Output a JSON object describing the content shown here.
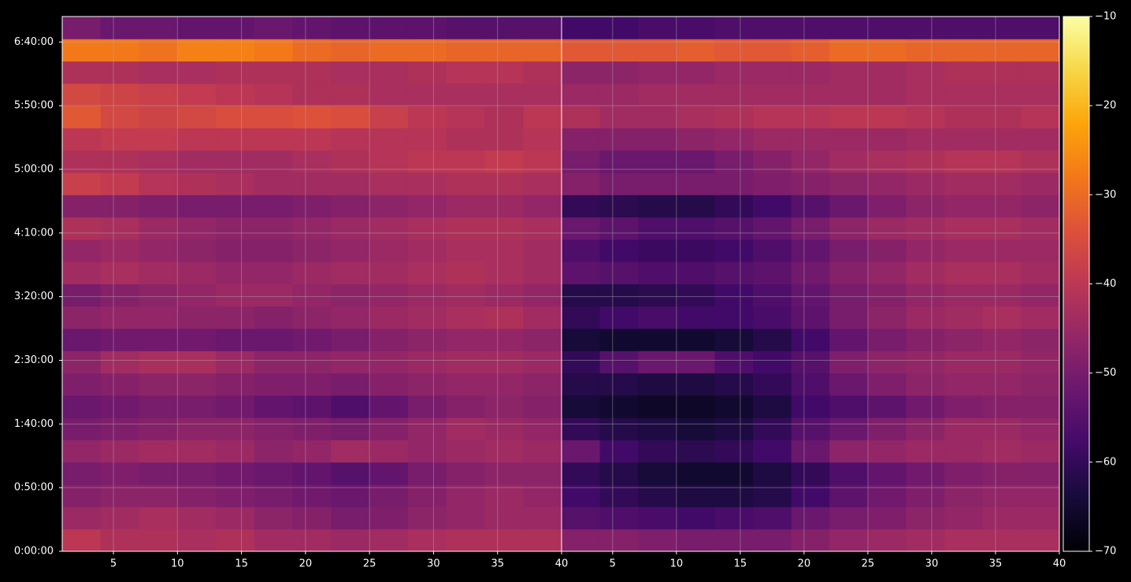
{
  "chart_data": [
    {
      "type": "heatmap",
      "colormap": "inferno",
      "grid": true,
      "x": [
        2.5,
        5.5,
        8.5,
        11.5,
        14.5,
        17.5,
        20.5,
        23.5,
        26.5,
        29.5,
        32.5,
        35.5,
        38.5
      ],
      "y": [
        525,
        1575,
        2625,
        3675,
        4725,
        5775,
        6825,
        7875,
        8925,
        9975,
        11025,
        12075,
        13125,
        14175,
        15225,
        16275,
        17325,
        18375,
        19425,
        20475,
        21525,
        22575,
        23625,
        24675
      ],
      "xlim": [
        1,
        40
      ],
      "xticks": [
        5,
        10,
        15,
        20,
        25,
        30,
        35,
        40
      ],
      "ylim": [
        0,
        25200
      ],
      "yticks": [
        {
          "value": 0,
          "label": "0:00:00"
        },
        {
          "value": 3000,
          "label": "0:50:00"
        },
        {
          "value": 6000,
          "label": "1:40:00"
        },
        {
          "value": 9000,
          "label": "2:30:00"
        },
        {
          "value": 12000,
          "label": "3:20:00"
        },
        {
          "value": 15000,
          "label": "4:10:00"
        },
        {
          "value": 18000,
          "label": "5:00:00"
        },
        {
          "value": 21000,
          "label": "5:50:00"
        },
        {
          "value": 24000,
          "label": "6:40:00"
        }
      ],
      "values": [
        [
          -40,
          -42,
          -42,
          -43,
          -42,
          -44,
          -44,
          -45,
          -44,
          -43,
          -42,
          -42,
          -42
        ],
        [
          -45,
          -44,
          -43,
          -44,
          -45,
          -47,
          -48,
          -50,
          -49,
          -47,
          -46,
          -45,
          -45
        ],
        [
          -48,
          -47,
          -47,
          -48,
          -49,
          -50,
          -51,
          -52,
          -50,
          -48,
          -46,
          -45,
          -46
        ],
        [
          -50,
          -49,
          -50,
          -50,
          -51,
          -52,
          -53,
          -55,
          -53,
          -50,
          -48,
          -47,
          -47
        ],
        [
          -46,
          -45,
          -44,
          -44,
          -45,
          -47,
          -46,
          -44,
          -45,
          -46,
          -45,
          -44,
          -45
        ],
        [
          -50,
          -49,
          -48,
          -47,
          -47,
          -48,
          -49,
          -50,
          -48,
          -46,
          -44,
          -45,
          -46
        ],
        [
          -52,
          -51,
          -50,
          -50,
          -51,
          -53,
          -54,
          -56,
          -53,
          -50,
          -48,
          -47,
          -48
        ],
        [
          -49,
          -48,
          -47,
          -47,
          -48,
          -49,
          -49,
          -50,
          -48,
          -47,
          -46,
          -46,
          -47
        ],
        [
          -47,
          -44,
          -43,
          -43,
          -45,
          -47,
          -47,
          -46,
          -46,
          -45,
          -44,
          -44,
          -45
        ],
        [
          -52,
          -51,
          -51,
          -51,
          -52,
          -52,
          -51,
          -50,
          -48,
          -47,
          -46,
          -46,
          -47
        ],
        [
          -47,
          -46,
          -46,
          -47,
          -47,
          -48,
          -47,
          -46,
          -45,
          -44,
          -43,
          -42,
          -44
        ],
        [
          -50,
          -48,
          -47,
          -46,
          -45,
          -45,
          -46,
          -47,
          -46,
          -45,
          -44,
          -45,
          -46
        ],
        [
          -44,
          -43,
          -44,
          -45,
          -46,
          -46,
          -45,
          -44,
          -44,
          -43,
          -42,
          -43,
          -44
        ],
        [
          -46,
          -45,
          -46,
          -47,
          -48,
          -48,
          -47,
          -46,
          -45,
          -44,
          -43,
          -43,
          -44
        ],
        [
          -42,
          -43,
          -45,
          -46,
          -47,
          -47,
          -46,
          -45,
          -44,
          -43,
          -42,
          -42,
          -43
        ],
        [
          -48,
          -48,
          -49,
          -50,
          -50,
          -50,
          -49,
          -48,
          -47,
          -46,
          -45,
          -45,
          -46
        ],
        [
          -38,
          -39,
          -41,
          -42,
          -43,
          -44,
          -44,
          -44,
          -43,
          -43,
          -42,
          -42,
          -43
        ],
        [
          -42,
          -42,
          -43,
          -44,
          -44,
          -44,
          -43,
          -42,
          -41,
          -40,
          -40,
          -39,
          -40
        ],
        [
          -40,
          -39,
          -39,
          -40,
          -40,
          -40,
          -40,
          -41,
          -41,
          -41,
          -42,
          -42,
          -41
        ],
        [
          -33,
          -36,
          -37,
          -36,
          -35,
          -35,
          -34,
          -35,
          -38,
          -40,
          -41,
          -42,
          -40
        ],
        [
          -36,
          -37,
          -38,
          -39,
          -40,
          -41,
          -42,
          -42,
          -43,
          -43,
          -43,
          -43,
          -43
        ],
        [
          -42,
          -42,
          -43,
          -43,
          -42,
          -42,
          -42,
          -43,
          -43,
          -42,
          -41,
          -41,
          -42
        ],
        [
          -28,
          -28,
          -29,
          -27,
          -27,
          -28,
          -30,
          -31,
          -30,
          -30,
          -31,
          -31,
          -31
        ],
        [
          -50,
          -52,
          -52,
          -53,
          -53,
          -52,
          -53,
          -54,
          -54,
          -54,
          -55,
          -55,
          -55
        ]
      ]
    },
    {
      "type": "heatmap",
      "colormap": "inferno",
      "grid": true,
      "sharey": true,
      "x": [
        2.5,
        5.5,
        8.5,
        11.5,
        14.5,
        17.5,
        20.5,
        23.5,
        26.5,
        29.5,
        32.5,
        35.5,
        38.5
      ],
      "y": [
        525,
        1575,
        2625,
        3675,
        4725,
        5775,
        6825,
        7875,
        8925,
        9975,
        11025,
        12075,
        13125,
        14175,
        15225,
        16275,
        17325,
        18375,
        19425,
        20475,
        21525,
        22575,
        23625,
        24675
      ],
      "xlim": [
        1,
        40
      ],
      "xticks": [
        5,
        10,
        15,
        20,
        25,
        30,
        35,
        40
      ],
      "ylim": [
        0,
        25200
      ],
      "values": [
        [
          -48,
          -48,
          -49,
          -50,
          -50,
          -50,
          -48,
          -46,
          -45,
          -44,
          -43,
          -43,
          -43
        ],
        [
          -55,
          -56,
          -57,
          -58,
          -57,
          -56,
          -52,
          -50,
          -49,
          -47,
          -46,
          -45,
          -45
        ],
        [
          -58,
          -60,
          -62,
          -63,
          -63,
          -62,
          -58,
          -54,
          -51,
          -49,
          -47,
          -46,
          -46
        ],
        [
          -60,
          -62,
          -64,
          -65,
          -65,
          -63,
          -60,
          -56,
          -53,
          -51,
          -49,
          -48,
          -48
        ],
        [
          -52,
          -58,
          -60,
          -61,
          -60,
          -58,
          -52,
          -47,
          -46,
          -45,
          -45,
          -44,
          -45
        ],
        [
          -60,
          -62,
          -63,
          -64,
          -63,
          -60,
          -55,
          -52,
          -49,
          -47,
          -45,
          -45,
          -46
        ],
        [
          -64,
          -65,
          -66,
          -66,
          -65,
          -63,
          -58,
          -56,
          -54,
          -51,
          -49,
          -48,
          -48
        ],
        [
          -62,
          -62,
          -63,
          -63,
          -62,
          -60,
          -56,
          -52,
          -49,
          -47,
          -46,
          -46,
          -47
        ],
        [
          -60,
          -55,
          -52,
          -52,
          -56,
          -58,
          -55,
          -49,
          -47,
          -46,
          -45,
          -45,
          -46
        ],
        [
          -64,
          -65,
          -65,
          -65,
          -64,
          -62,
          -58,
          -53,
          -50,
          -48,
          -47,
          -46,
          -47
        ],
        [
          -60,
          -58,
          -57,
          -58,
          -58,
          -57,
          -54,
          -50,
          -47,
          -45,
          -44,
          -43,
          -44
        ],
        [
          -62,
          -62,
          -61,
          -60,
          -58,
          -56,
          -53,
          -50,
          -48,
          -46,
          -45,
          -45,
          -46
        ],
        [
          -54,
          -55,
          -56,
          -56,
          -55,
          -54,
          -51,
          -48,
          -46,
          -44,
          -43,
          -43,
          -44
        ],
        [
          -56,
          -58,
          -59,
          -59,
          -58,
          -56,
          -53,
          -50,
          -48,
          -46,
          -45,
          -45,
          -45
        ],
        [
          -52,
          -54,
          -56,
          -56,
          -55,
          -53,
          -50,
          -47,
          -45,
          -44,
          -43,
          -43,
          -44
        ],
        [
          -60,
          -61,
          -62,
          -62,
          -60,
          -58,
          -55,
          -52,
          -49,
          -47,
          -46,
          -46,
          -47
        ],
        [
          -48,
          -50,
          -50,
          -50,
          -50,
          -49,
          -48,
          -47,
          -46,
          -45,
          -44,
          -44,
          -45
        ],
        [
          -50,
          -52,
          -52,
          -52,
          -50,
          -48,
          -46,
          -44,
          -43,
          -42,
          -41,
          -41,
          -42
        ],
        [
          -48,
          -48,
          -48,
          -47,
          -46,
          -45,
          -45,
          -45,
          -45,
          -44,
          -44,
          -44,
          -44
        ],
        [
          -42,
          -44,
          -44,
          -43,
          -42,
          -41,
          -41,
          -40,
          -40,
          -41,
          -42,
          -42,
          -41
        ],
        [
          -45,
          -45,
          -44,
          -44,
          -44,
          -44,
          -44,
          -44,
          -44,
          -43,
          -43,
          -43,
          -43
        ],
        [
          -47,
          -47,
          -46,
          -46,
          -45,
          -45,
          -45,
          -44,
          -44,
          -43,
          -42,
          -42,
          -42
        ],
        [
          -33,
          -33,
          -33,
          -32,
          -33,
          -33,
          -32,
          -30,
          -30,
          -31,
          -31,
          -31,
          -31
        ],
        [
          -58,
          -58,
          -57,
          -57,
          -56,
          -56,
          -56,
          -56,
          -56,
          -56,
          -56,
          -56,
          -56
        ]
      ]
    }
  ],
  "colorbar": {
    "colormap": "inferno",
    "lim": [
      -70,
      -10
    ],
    "ticks": [
      {
        "value": -70,
        "label": "−70"
      },
      {
        "value": -60,
        "label": "−60"
      },
      {
        "value": -50,
        "label": "−50"
      },
      {
        "value": -40,
        "label": "−40"
      },
      {
        "value": -30,
        "label": "−30"
      },
      {
        "value": -20,
        "label": "−20"
      },
      {
        "value": -10,
        "label": "−10"
      }
    ]
  }
}
